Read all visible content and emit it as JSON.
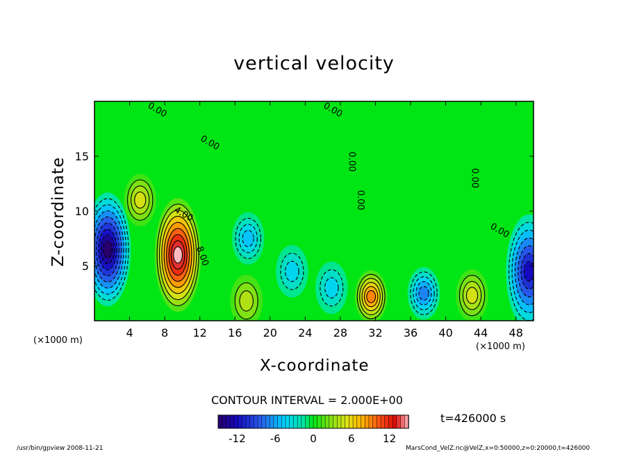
{
  "chart_data": {
    "type": "heatmap",
    "title": "vertical velocity",
    "xlabel": "X-coordinate",
    "ylabel": "Z-coordinate",
    "x_unit_left": "(×1000 m)",
    "x_unit_right": "(×1000 m)",
    "xlim": [
      0,
      50
    ],
    "ylim": [
      0,
      20
    ],
    "x_ticks": [
      4,
      8,
      12,
      16,
      20,
      24,
      28,
      32,
      36,
      40,
      44,
      48
    ],
    "y_ticks": [
      5,
      10,
      15
    ],
    "contour_labels": [
      "0.00",
      "0.00",
      "0.00",
      "0.00",
      "0.00",
      "0.00",
      "0.00",
      "4.00",
      "8.00"
    ],
    "contour_interval_text": "CONTOUR INTERVAL = 2.000E+00",
    "colorbar": {
      "min": -15,
      "max": 15,
      "ticks": [
        -12,
        -6,
        0,
        6,
        12
      ]
    },
    "time_text": "t=426000 s",
    "features": [
      {
        "x": 9.5,
        "z": 6.0,
        "value": 15
      },
      {
        "x": 31.5,
        "z": 2.2,
        "value": 9
      },
      {
        "x": 37.5,
        "z": 2.5,
        "value": -7
      },
      {
        "x": 43.0,
        "z": 2.3,
        "value": 5
      },
      {
        "x": 1.5,
        "z": 6.5,
        "value": -15
      },
      {
        "x": 49.5,
        "z": 4.5,
        "value": -12
      },
      {
        "x": 17.5,
        "z": 7.5,
        "value": -5
      },
      {
        "x": 22.5,
        "z": 4.5,
        "value": -4
      },
      {
        "x": 27.0,
        "z": 3.0,
        "value": -4
      },
      {
        "x": 17.3,
        "z": 1.8,
        "value": 4
      },
      {
        "x": 5.2,
        "z": 11.0,
        "value": 5
      }
    ]
  },
  "footer": {
    "left": "/usr/bin/gpview  2008-11-21",
    "right": "MarsCond_VelZ.nc@VelZ,x=0:50000,z=0:20000,t=426000"
  }
}
